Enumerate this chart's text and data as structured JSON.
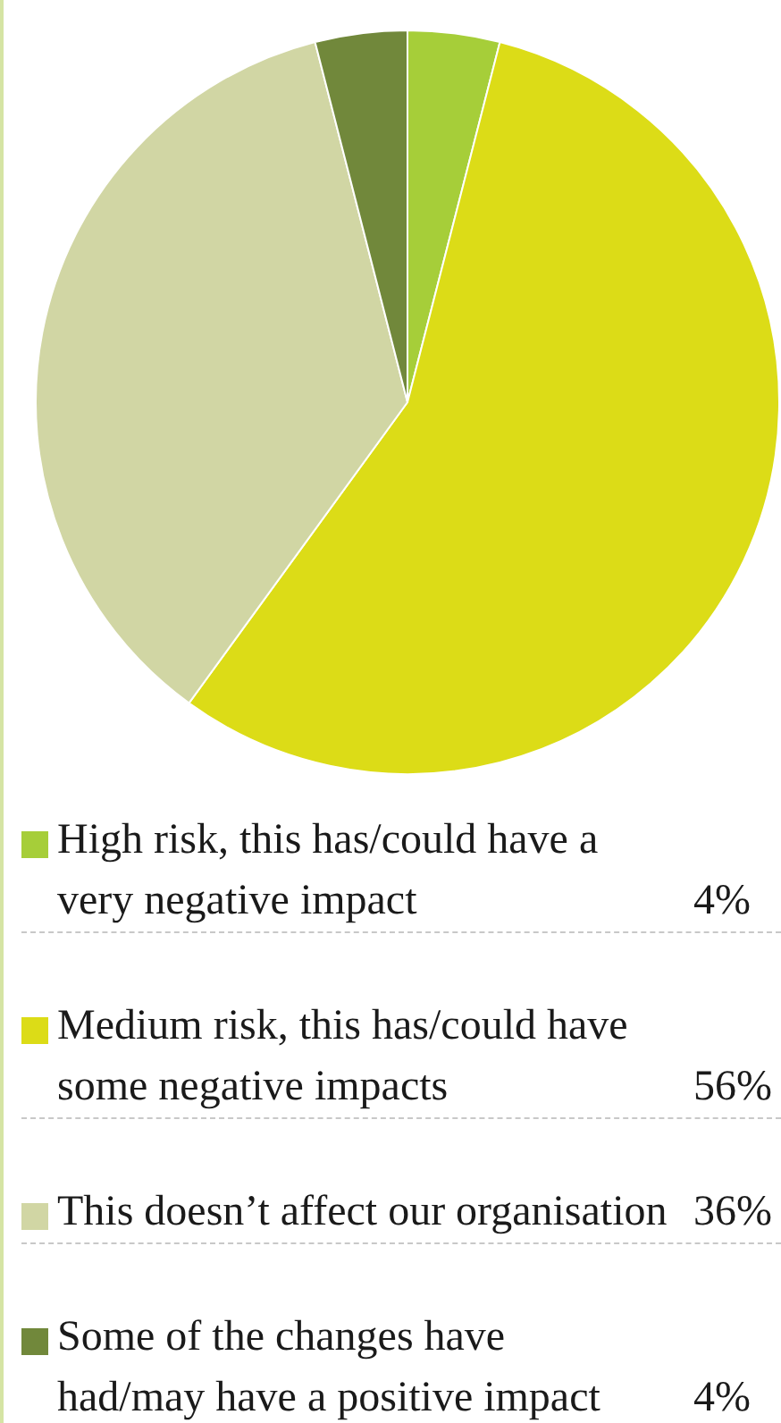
{
  "chart_data": {
    "type": "pie",
    "categories": [
      "High risk, this has/could have a\nvery negative impact",
      "Medium risk, this has/could have\nsome negative impacts",
      "This doesn’t affect our organisation",
      "Some of the changes have\nhad/may have a positive impact"
    ],
    "values": [
      4,
      56,
      36,
      4
    ],
    "colors": [
      "#a6ce39",
      "#dcdc17",
      "#d1d6a4",
      "#71883b"
    ],
    "value_labels": [
      "4%",
      "56%",
      "36%",
      "4%"
    ],
    "legend": "bottom"
  }
}
